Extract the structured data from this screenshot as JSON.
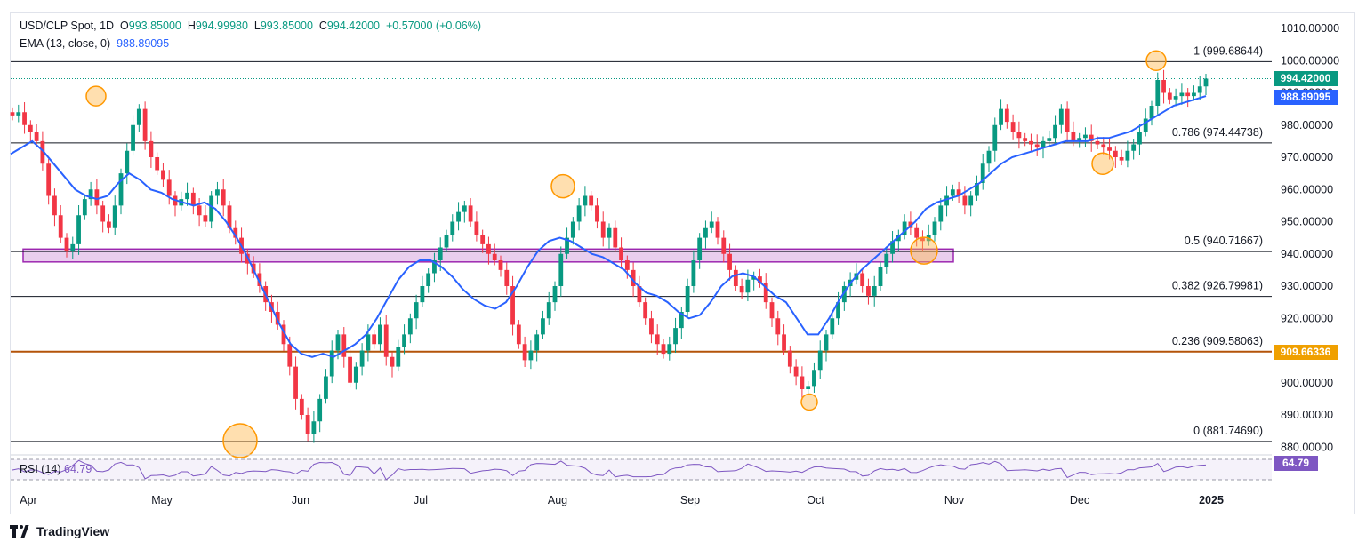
{
  "header": {
    "symbol": "USD/CLP Spot, 1D",
    "open_label": "O",
    "open": "993.85000",
    "high_label": "H",
    "high": "994.99980",
    "low_label": "L",
    "low": "993.85000",
    "close_label": "C",
    "close": "994.42000",
    "change": "+0.57000 (+0.06%)",
    "ema_label": "EMA (13, close, 0)",
    "ema_value": "988.89095"
  },
  "rsi": {
    "label": "RSI (14)",
    "value": "64.79"
  },
  "price_tags": {
    "last": "994.42000",
    "ema": "988.89095",
    "level": "909.66336",
    "rsi": "64.79"
  },
  "brand": "TradingView",
  "colors": {
    "up": "#089981",
    "down": "#f23645",
    "ema": "#2962ff",
    "zone": "#9c27b0",
    "circle": "#ff9800",
    "rsi": "#7e57c2",
    "support": "#b45309"
  },
  "chart_data": {
    "type": "candlestick",
    "ylim": [
      875,
      1012
    ],
    "y_ticks": [
      "1010.00000",
      "1000.00000",
      "990.00000",
      "980.00000",
      "970.00000",
      "960.00000",
      "950.00000",
      "940.00000",
      "930.00000",
      "920.00000",
      "910.00000",
      "900.00000",
      "890.00000",
      "880.00000"
    ],
    "x_ticks": [
      "Apr",
      "May",
      "Jun",
      "Jul",
      "Aug",
      "Sep",
      "Oct",
      "Nov",
      "Dec",
      "2025"
    ],
    "fib_levels": [
      {
        "label": "1 (999.68644)",
        "value": 999.68644
      },
      {
        "label": "0.786 (974.44738)",
        "value": 974.44738
      },
      {
        "label": "0.5 (940.71667)",
        "value": 940.71667
      },
      {
        "label": "0.382 (926.79981)",
        "value": 926.79981
      },
      {
        "label": "0.236 (909.58063)",
        "value": 909.58063
      },
      {
        "label": "0 (881.74690)",
        "value": 881.7469
      }
    ],
    "support_level": 909.66336,
    "zone": {
      "from": 937.5,
      "to": 941.5
    },
    "close_path": [
      983,
      984,
      980,
      978,
      975,
      968,
      958,
      952,
      945,
      941,
      943,
      952,
      957,
      960,
      955,
      950,
      948,
      955,
      965,
      972,
      980,
      985,
      975,
      970,
      966,
      963,
      958,
      955,
      957,
      959,
      955,
      952,
      950,
      958,
      960,
      955,
      948,
      945,
      940,
      937,
      934,
      930,
      925,
      922,
      918,
      912,
      905,
      895,
      890,
      884,
      888,
      895,
      902,
      910,
      915,
      908,
      900,
      905,
      910,
      915,
      912,
      918,
      908,
      905,
      911,
      915,
      920,
      925,
      930,
      934,
      938,
      942,
      946,
      950,
      953,
      955,
      950,
      946,
      943,
      940,
      938,
      935,
      930,
      918,
      912,
      907,
      910,
      915,
      920,
      925,
      930,
      940,
      945,
      950,
      955,
      958,
      955,
      950,
      945,
      948,
      942,
      938,
      935,
      930,
      925,
      920,
      915,
      912,
      909,
      912,
      917,
      922,
      930,
      938,
      945,
      948,
      950,
      945,
      940,
      935,
      930,
      928,
      932,
      933,
      931,
      925,
      920,
      915,
      910,
      905,
      902,
      898,
      899,
      904,
      910,
      915,
      920,
      925,
      930,
      932,
      934,
      930,
      927,
      930,
      936,
      940,
      944,
      946,
      950,
      948,
      945,
      944,
      946,
      950,
      955,
      958,
      960,
      958,
      955,
      958,
      962,
      968,
      972,
      980,
      985,
      981,
      978,
      976,
      975,
      974,
      973,
      975,
      976,
      980,
      985,
      978,
      975,
      976,
      977,
      975,
      974,
      973,
      972,
      970,
      969,
      972,
      974,
      978,
      982,
      986,
      994,
      990,
      988,
      989,
      990,
      989,
      990,
      992,
      994.42
    ],
    "ema_path": [
      971,
      973,
      975,
      972,
      968,
      964,
      960,
      958,
      957,
      958,
      962,
      965,
      963,
      960,
      959,
      957,
      956,
      955,
      956,
      954,
      950,
      945,
      939,
      932,
      925,
      918,
      912,
      909,
      908,
      909,
      908,
      910,
      912,
      915,
      920,
      926,
      932,
      936,
      938,
      938,
      936,
      933,
      929,
      926,
      924,
      923,
      925,
      930,
      936,
      941,
      944,
      945,
      944,
      942,
      940,
      939,
      937,
      935,
      931,
      928,
      927,
      925,
      922,
      920,
      921,
      925,
      930,
      933,
      934,
      933,
      930,
      927,
      925,
      920,
      915,
      915,
      920,
      926,
      931,
      935,
      938,
      941,
      944,
      947,
      950,
      954,
      956,
      957,
      958,
      960,
      962,
      965,
      968,
      970,
      971,
      972,
      973,
      974,
      975,
      975,
      975,
      976,
      976,
      977,
      978,
      980,
      982,
      984,
      986,
      987,
      988,
      989
    ],
    "rsi_value": 64.79
  }
}
